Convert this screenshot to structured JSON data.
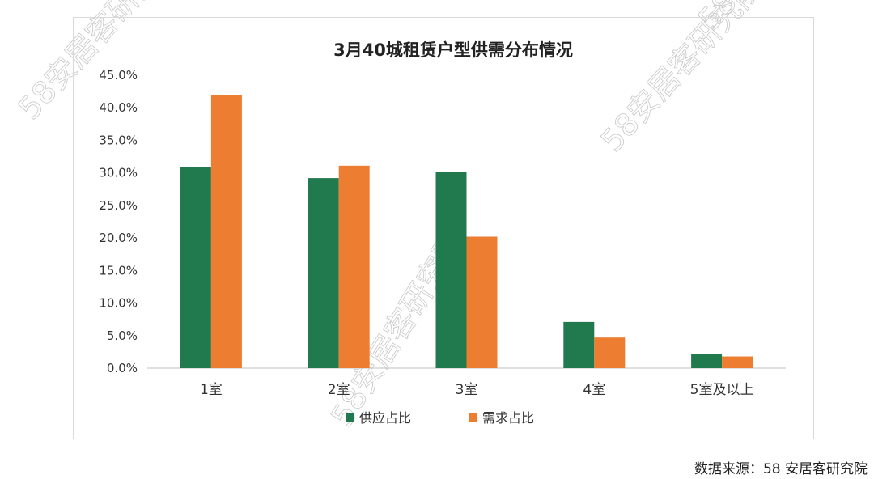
{
  "chart_data": {
    "type": "bar",
    "title": "3月40城租赁户型供需分布情况",
    "categories": [
      "1室",
      "2室",
      "3室",
      "4室",
      "5室及以上"
    ],
    "series": [
      {
        "name": "供应占比",
        "color": "#217a4e",
        "values": [
          30.9,
          29.2,
          30.1,
          7.1,
          2.2
        ]
      },
      {
        "name": "需求占比",
        "color": "#ed7d31",
        "values": [
          41.9,
          31.1,
          20.2,
          4.7,
          1.8
        ]
      }
    ],
    "ylim": [
      0,
      45
    ],
    "yticks": [
      "0.0%",
      "5.0%",
      "10.0%",
      "15.0%",
      "20.0%",
      "25.0%",
      "30.0%",
      "35.0%",
      "40.0%",
      "45.0%"
    ],
    "xlabel": "",
    "ylabel": "",
    "grid": false,
    "legend_position": "bottom"
  },
  "watermark": "58安居客研究院",
  "source_note": "数据来源：58 安居客研究院"
}
